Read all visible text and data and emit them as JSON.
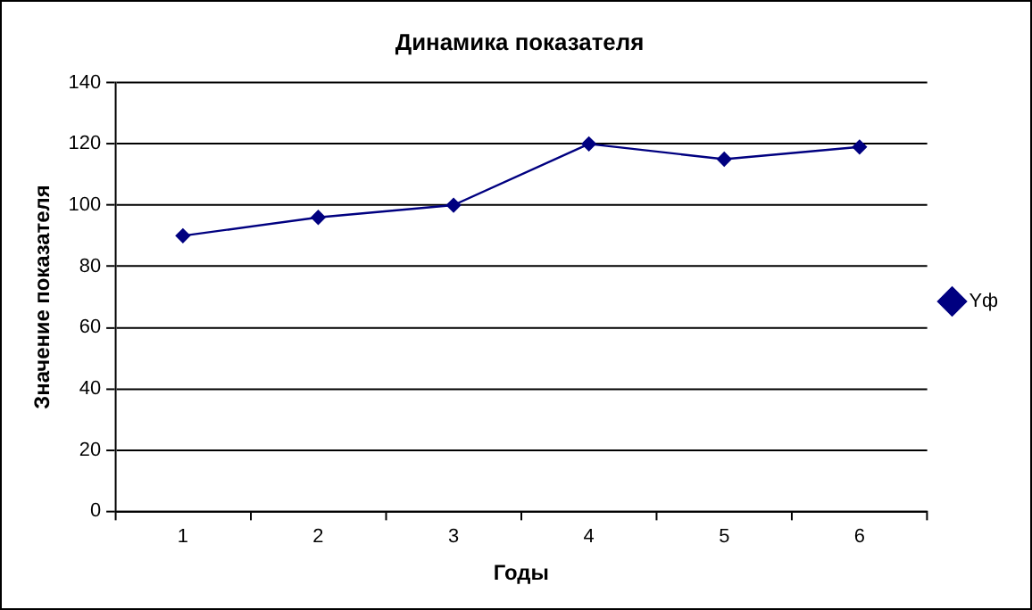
{
  "chart_data": {
    "type": "line",
    "title": "Динамика показателя",
    "xlabel": "Годы",
    "ylabel": "Значение показателя",
    "categories": [
      "1",
      "2",
      "3",
      "4",
      "5",
      "6"
    ],
    "series": [
      {
        "name": "Yф",
        "color": "#000080",
        "values": [
          90,
          96,
          100,
          120,
          115,
          119
        ]
      }
    ],
    "ylim": [
      0,
      140
    ],
    "yticks": [
      0,
      20,
      40,
      60,
      80,
      100,
      120,
      140
    ],
    "grid": "y",
    "legend": "right",
    "marker": "diamond",
    "line_style": "solid"
  }
}
